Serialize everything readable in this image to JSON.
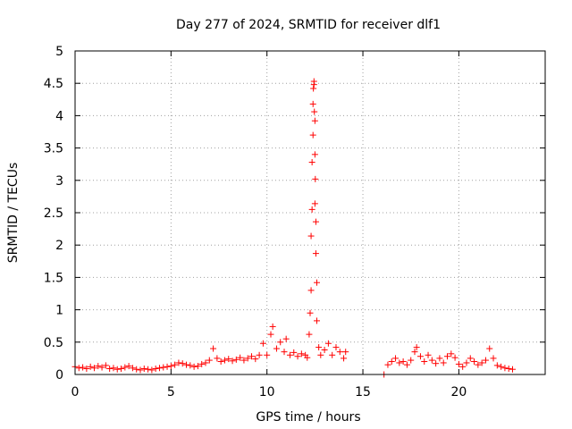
{
  "chart_data": {
    "type": "scatter",
    "title": "Day 277 of 2024, SRMTID for receiver dlf1",
    "xlabel": "GPS time / hours",
    "ylabel": "SRMTID / TECUs",
    "xlim": [
      0,
      24.5
    ],
    "ylim": [
      0,
      5
    ],
    "xticks": [
      "0",
      "5",
      "10",
      "15",
      "20"
    ],
    "yticks": [
      "0",
      "0.5",
      "1",
      "1.5",
      "2",
      "2.5",
      "3",
      "3.5",
      "4",
      "4.5",
      "5"
    ],
    "grid": true,
    "marker": "+",
    "series": [
      {
        "name": "SRMTID",
        "color": "#ff0000",
        "points": [
          [
            0.0,
            0.12
          ],
          [
            0.2,
            0.1
          ],
          [
            0.4,
            0.11
          ],
          [
            0.6,
            0.09
          ],
          [
            0.8,
            0.12
          ],
          [
            1.0,
            0.1
          ],
          [
            1.2,
            0.13
          ],
          [
            1.4,
            0.11
          ],
          [
            1.6,
            0.14
          ],
          [
            1.8,
            0.09
          ],
          [
            2.0,
            0.1
          ],
          [
            2.2,
            0.08
          ],
          [
            2.4,
            0.09
          ],
          [
            2.6,
            0.11
          ],
          [
            2.8,
            0.13
          ],
          [
            3.0,
            0.1
          ],
          [
            3.2,
            0.08
          ],
          [
            3.4,
            0.07
          ],
          [
            3.6,
            0.09
          ],
          [
            3.8,
            0.08
          ],
          [
            4.0,
            0.07
          ],
          [
            4.2,
            0.09
          ],
          [
            4.4,
            0.1
          ],
          [
            4.6,
            0.11
          ],
          [
            4.8,
            0.12
          ],
          [
            5.0,
            0.13
          ],
          [
            5.2,
            0.15
          ],
          [
            5.4,
            0.18
          ],
          [
            5.6,
            0.17
          ],
          [
            5.8,
            0.15
          ],
          [
            6.0,
            0.14
          ],
          [
            6.2,
            0.12
          ],
          [
            6.4,
            0.13
          ],
          [
            6.6,
            0.16
          ],
          [
            6.8,
            0.18
          ],
          [
            7.0,
            0.22
          ],
          [
            7.2,
            0.4
          ],
          [
            7.4,
            0.25
          ],
          [
            7.6,
            0.2
          ],
          [
            7.8,
            0.22
          ],
          [
            8.0,
            0.24
          ],
          [
            8.2,
            0.21
          ],
          [
            8.4,
            0.23
          ],
          [
            8.6,
            0.26
          ],
          [
            8.8,
            0.22
          ],
          [
            9.0,
            0.25
          ],
          [
            9.2,
            0.28
          ],
          [
            9.4,
            0.24
          ],
          [
            9.6,
            0.3
          ],
          [
            9.8,
            0.48
          ],
          [
            10.0,
            0.3
          ],
          [
            10.2,
            0.62
          ],
          [
            10.3,
            0.74
          ],
          [
            10.5,
            0.4
          ],
          [
            10.7,
            0.5
          ],
          [
            10.9,
            0.35
          ],
          [
            11.0,
            0.55
          ],
          [
            11.2,
            0.3
          ],
          [
            11.4,
            0.34
          ],
          [
            11.6,
            0.28
          ],
          [
            11.8,
            0.32
          ],
          [
            12.0,
            0.3
          ],
          [
            12.1,
            0.26
          ],
          [
            12.2,
            0.62
          ],
          [
            12.25,
            0.95
          ],
          [
            12.3,
            1.3
          ],
          [
            12.3,
            2.14
          ],
          [
            12.35,
            2.55
          ],
          [
            12.35,
            3.28
          ],
          [
            12.4,
            3.7
          ],
          [
            12.4,
            4.18
          ],
          [
            12.42,
            4.42
          ],
          [
            12.45,
            4.53
          ],
          [
            12.45,
            4.48
          ],
          [
            12.47,
            4.06
          ],
          [
            12.5,
            3.92
          ],
          [
            12.5,
            3.4
          ],
          [
            12.52,
            3.02
          ],
          [
            12.5,
            2.64
          ],
          [
            12.55,
            2.36
          ],
          [
            12.55,
            1.87
          ],
          [
            12.6,
            1.42
          ],
          [
            12.6,
            0.83
          ],
          [
            12.7,
            0.42
          ],
          [
            12.8,
            0.3
          ],
          [
            13.0,
            0.38
          ],
          [
            13.2,
            0.48
          ],
          [
            13.4,
            0.3
          ],
          [
            13.6,
            0.42
          ],
          [
            13.8,
            0.35
          ],
          [
            14.0,
            0.25
          ],
          [
            14.1,
            0.35
          ],
          [
            16.1,
            0.0
          ],
          [
            16.3,
            0.15
          ],
          [
            16.5,
            0.2
          ],
          [
            16.7,
            0.25
          ],
          [
            16.9,
            0.18
          ],
          [
            17.1,
            0.2
          ],
          [
            17.3,
            0.15
          ],
          [
            17.5,
            0.22
          ],
          [
            17.7,
            0.35
          ],
          [
            17.8,
            0.42
          ],
          [
            18.0,
            0.28
          ],
          [
            18.2,
            0.2
          ],
          [
            18.4,
            0.3
          ],
          [
            18.6,
            0.22
          ],
          [
            18.8,
            0.17
          ],
          [
            19.0,
            0.25
          ],
          [
            19.2,
            0.18
          ],
          [
            19.4,
            0.28
          ],
          [
            19.6,
            0.32
          ],
          [
            19.8,
            0.26
          ],
          [
            20.0,
            0.16
          ],
          [
            20.2,
            0.12
          ],
          [
            20.4,
            0.18
          ],
          [
            20.6,
            0.25
          ],
          [
            20.8,
            0.2
          ],
          [
            21.0,
            0.15
          ],
          [
            21.2,
            0.18
          ],
          [
            21.4,
            0.22
          ],
          [
            21.6,
            0.4
          ],
          [
            21.8,
            0.25
          ],
          [
            22.0,
            0.14
          ],
          [
            22.2,
            0.12
          ],
          [
            22.4,
            0.1
          ],
          [
            22.6,
            0.09
          ],
          [
            22.8,
            0.08
          ]
        ]
      }
    ]
  }
}
